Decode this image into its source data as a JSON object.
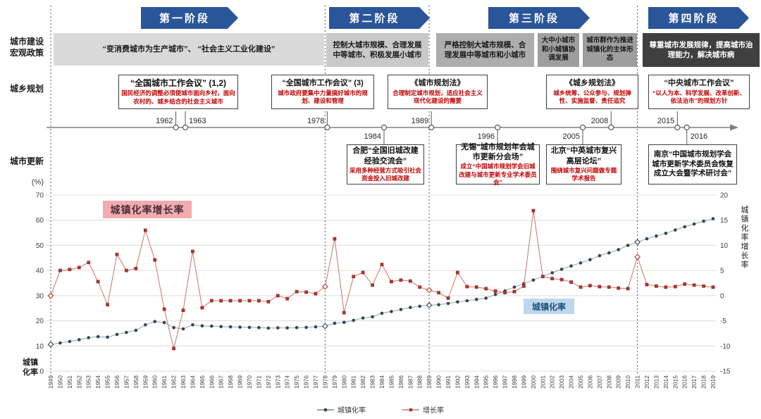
{
  "phases": [
    {
      "label": "第一阶段"
    },
    {
      "label": "第二阶段"
    },
    {
      "label": "第三阶段"
    },
    {
      "label": "第四阶段"
    }
  ],
  "row_labels": {
    "macro_policy": "城市建设\n宏观政策",
    "planning": "城乡规划",
    "renewal": "城市更新"
  },
  "policy_boxes": {
    "p1": "“变消费城市为生产城市”、 “社会主义工业化建设”",
    "p2": "控制大城市规模、合理发展中等城市、积极发展小城市",
    "p3": "严格控制大城市规模、合理发展中等城市和小城市",
    "p4a": "大中小城市和小城镇协调发展",
    "p4b": "城市群作为推进城镇化的主体形态",
    "p5": "尊重城市发展规律，提高城市治理能力，解决城市病"
  },
  "planning_boxes": [
    {
      "title": "“全国城市工作会议” (1,2)",
      "body": "国民经济的调整必须使城市面向乡村，面向农村的、城乡结合的社会主义城市"
    },
    {
      "title": "“全国城市工作会议” (3)",
      "body": "城市政府要集中力量搞好城市的规划、建设和管理"
    },
    {
      "title": "《城市规划法》",
      "body": "合理制定城市规划，适应社会主义现代化建设的需要"
    },
    {
      "title": "《城乡规划法》",
      "body": "城乡统筹、公众参与、规划弹性、实施监督、责任追究"
    },
    {
      "title": "“中央城市工作会议”",
      "body": "“以人为本、科学发展、改革创新、依法治市”的规划方针"
    }
  ],
  "renewal_boxes": [
    {
      "title": "合肥“全国旧城改建经验交流会”",
      "body": "采用多种经营方式吸引社会资金投入旧城改建"
    },
    {
      "title": "无锡“城市规划年会城市更新分会场”",
      "body": "成立“中国城市规划学会旧城改建与城市更新专业学术委员会”"
    },
    {
      "title": "北京“中英城市复兴高层论坛”",
      "body": "围绕城市复兴问题做专题学术报告"
    },
    {
      "title": "南京“中国城市规划学会城市更新学术委员会恢复成立大会暨学术研讨会”",
      "body": ""
    }
  ],
  "timeline": {
    "events": [
      {
        "year": 1962,
        "dir": "up",
        "side": "above",
        "label_pos": "left"
      },
      {
        "year": 1963,
        "dir": "up",
        "side": "above",
        "label_pos": "right"
      },
      {
        "year": 1978,
        "dir": "up",
        "side": "above",
        "label_pos": "left"
      },
      {
        "year": 1984,
        "dir": "down",
        "side": "below",
        "label_pos": "left"
      },
      {
        "year": 1989,
        "dir": "up",
        "side": "above",
        "label_pos": "left"
      },
      {
        "year": 1996,
        "dir": "down",
        "side": "below",
        "label_pos": "left"
      },
      {
        "year": 2005,
        "dir": "down",
        "side": "below",
        "label_pos": "left"
      },
      {
        "year": 2008,
        "dir": "up",
        "side": "above",
        "label_pos": "left"
      },
      {
        "year": 2015,
        "dir": "up",
        "side": "above",
        "label_pos": "left"
      },
      {
        "year": 2016,
        "dir": "down",
        "side": "below",
        "label_pos": "right"
      }
    ]
  },
  "chart_data": {
    "type": "line",
    "x": [
      1949,
      1950,
      1951,
      1952,
      1953,
      1954,
      1955,
      1956,
      1957,
      1958,
      1959,
      1960,
      1961,
      1962,
      1963,
      1964,
      1965,
      1966,
      1967,
      1968,
      1969,
      1970,
      1971,
      1972,
      1973,
      1974,
      1975,
      1976,
      1977,
      1978,
      1979,
      1980,
      1981,
      1982,
      1983,
      1984,
      1985,
      1986,
      1987,
      1988,
      1989,
      1990,
      1991,
      1992,
      1993,
      1994,
      1995,
      1996,
      1997,
      1998,
      1999,
      2000,
      2001,
      2002,
      2003,
      2004,
      2005,
      2006,
      2007,
      2008,
      2009,
      2010,
      2011,
      2012,
      2013,
      2014,
      2015,
      2016,
      2017,
      2018,
      2019
    ],
    "series": [
      {
        "name": "城镇化率",
        "axis": "left",
        "marker": "circle",
        "color": "#36454F",
        "line_color": "#97A4AE",
        "values": [
          10.6,
          11.2,
          11.8,
          12.5,
          13.3,
          13.7,
          13.5,
          14.6,
          15.4,
          16.2,
          18.4,
          19.7,
          19.3,
          17.3,
          16.8,
          18.4,
          18.0,
          17.9,
          17.7,
          17.6,
          17.5,
          17.4,
          17.3,
          17.1,
          17.2,
          17.2,
          17.3,
          17.4,
          17.6,
          17.9,
          19.0,
          19.4,
          20.2,
          21.1,
          21.6,
          23.0,
          23.7,
          24.5,
          25.3,
          25.8,
          26.2,
          26.4,
          26.9,
          27.5,
          28.0,
          28.5,
          29.0,
          30.5,
          31.9,
          33.4,
          34.8,
          36.2,
          37.7,
          39.1,
          40.5,
          41.8,
          43.0,
          44.3,
          45.9,
          47.0,
          48.3,
          50.0,
          51.3,
          52.6,
          53.7,
          54.8,
          56.1,
          57.4,
          58.5,
          59.6,
          60.6
        ]
      },
      {
        "name": "增长率",
        "axis": "right",
        "marker": "square",
        "color": "#B5342C",
        "line_color": "#C9746C",
        "values": [
          0.0,
          5.0,
          5.2,
          5.6,
          6.6,
          2.8,
          -1.8,
          8.2,
          5.0,
          5.4,
          13.0,
          7.1,
          -2.7,
          -10.5,
          -2.9,
          8.8,
          -2.4,
          -1.0,
          -1.0,
          -1.0,
          -1.0,
          -1.0,
          -1.0,
          -1.2,
          0.0,
          -0.6,
          0.8,
          0.7,
          0.4,
          1.8,
          11.3,
          -3.4,
          3.8,
          4.6,
          2.1,
          6.2,
          2.8,
          3.1,
          2.9,
          1.7,
          1.1,
          0.6,
          -0.5,
          4.6,
          1.8,
          1.7,
          1.4,
          0.9,
          0.6,
          0.8,
          1.9,
          16.9,
          3.8,
          3.4,
          3.2,
          2.7,
          1.7,
          2.0,
          1.8,
          1.7,
          1.5,
          1.4,
          7.7,
          2.2,
          1.9,
          1.7,
          1.8,
          2.3,
          2.1,
          1.9,
          1.7
        ]
      }
    ],
    "left_axis": {
      "unit": "(%)",
      "label": "城镇化率",
      "ticks": [
        70,
        60,
        50,
        40,
        30,
        20,
        10,
        0
      ],
      "range": [
        0,
        70
      ]
    },
    "right_axis": {
      "label": "城镇化率增长率",
      "ticks": [
        20,
        15,
        10,
        5,
        0,
        -5,
        -10,
        -15
      ],
      "range": [
        -15,
        20
      ]
    },
    "phase_boundary_years": [
      1949,
      1978,
      1989,
      2011
    ],
    "annotations": [
      {
        "text": "城镇化率增长率",
        "bg": "#F2ABB0"
      },
      {
        "text": "城镇化率",
        "bg": "#BDD7EE"
      }
    ],
    "grid": true,
    "legend_position": "bottom"
  },
  "legend": [
    {
      "label": "城镇化率",
      "color": "#36454F",
      "marker": "circle"
    },
    {
      "label": "增长率",
      "color": "#B5342C",
      "marker": "square"
    }
  ]
}
